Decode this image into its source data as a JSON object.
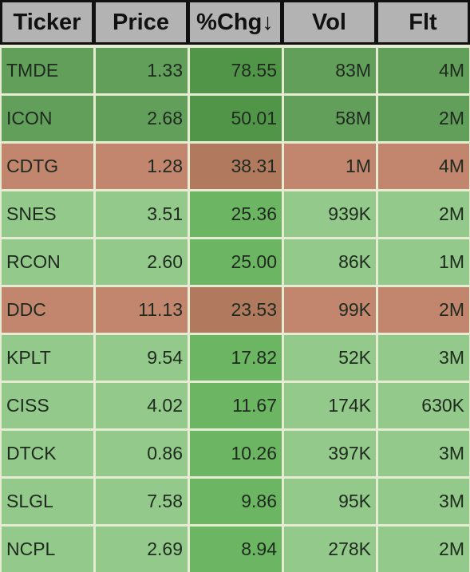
{
  "table": {
    "header": [
      "Ticker",
      "Price",
      "%Chg↓",
      "Vol",
      "Flt"
    ],
    "rows": [
      [
        "TMDE",
        "1.33",
        "78.55",
        "83M",
        "4M"
      ],
      [
        "ICON",
        "2.68",
        "50.01",
        "58M",
        "2M"
      ],
      [
        "CDTG",
        "1.28",
        "38.31",
        "1M",
        "4M"
      ],
      [
        "SNES",
        "3.51",
        "25.36",
        "939K",
        "2M"
      ],
      [
        "RCON",
        "2.60",
        "25.00",
        "86K",
        "1M"
      ],
      [
        "DDC",
        "11.13",
        "23.53",
        "99K",
        "2M"
      ],
      [
        "KPLT",
        "9.54",
        "17.82",
        "52K",
        "3M"
      ],
      [
        "CISS",
        "4.02",
        "11.67",
        "174K",
        "630K"
      ],
      [
        "DTCK",
        "0.86",
        "10.26",
        "397K",
        "3M"
      ],
      [
        "SLGL",
        "7.58",
        "9.86",
        "95K",
        "3M"
      ],
      [
        "NCPL",
        "2.69",
        "8.94",
        "278K",
        "2M"
      ]
    ]
  }
}
